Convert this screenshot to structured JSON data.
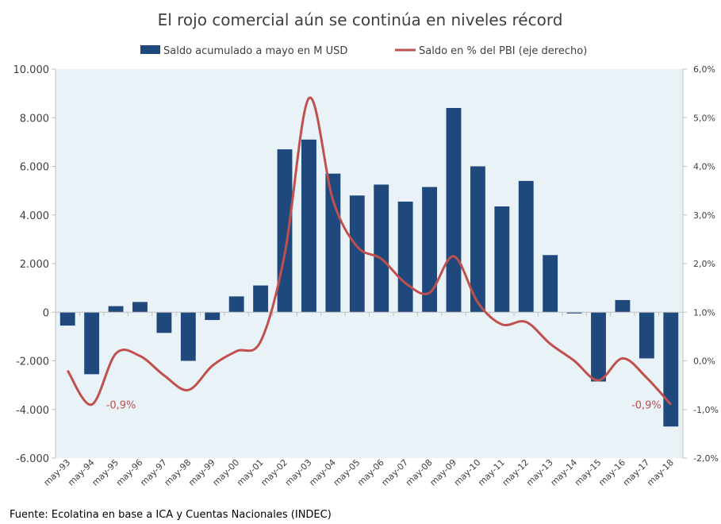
{
  "chart_data": {
    "type": "bar+line",
    "title": "El rojo comercial aún se continúa en niveles récord",
    "categories": [
      "may-93",
      "may-94",
      "may-95",
      "may-96",
      "may-97",
      "may-98",
      "may-99",
      "may-00",
      "may-01",
      "may-02",
      "may-03",
      "may-04",
      "may-05",
      "may-06",
      "may-07",
      "may-08",
      "may-09",
      "may-10",
      "may-11",
      "may-12",
      "may-13",
      "may-14",
      "may-15",
      "may-16",
      "may-17",
      "may-18"
    ],
    "series": [
      {
        "name": "Saldo acumulado a mayo en M USD",
        "kind": "bar",
        "axis": "left",
        "color": "#1f497d",
        "values": [
          -550,
          -2550,
          250,
          420,
          -850,
          -2000,
          -320,
          650,
          1100,
          6700,
          7100,
          5700,
          4800,
          5250,
          4550,
          5150,
          8400,
          6000,
          4350,
          5400,
          2350,
          -50,
          -2850,
          500,
          -1900,
          -4700
        ]
      },
      {
        "name": "Saldo en % del PBI (eje derecho)",
        "kind": "line",
        "axis": "right",
        "color": "#c0504d",
        "values": [
          -0.2,
          -0.9,
          0.15,
          0.1,
          -0.3,
          -0.6,
          -0.1,
          0.2,
          0.4,
          2.2,
          5.4,
          3.3,
          2.35,
          2.1,
          1.6,
          1.4,
          2.15,
          1.2,
          0.75,
          0.8,
          0.35,
          0.0,
          -0.4,
          0.05,
          -0.35,
          -0.9
        ]
      }
    ],
    "y_left": {
      "ylim": [
        -6000,
        10000
      ],
      "ticks": [
        "-6.000",
        "-4.000",
        "-2.000",
        "0",
        "2.000",
        "4.000",
        "6.000",
        "8.000",
        "10.000"
      ],
      "tick_values": [
        -6000,
        -4000,
        -2000,
        0,
        2000,
        4000,
        6000,
        8000,
        10000
      ]
    },
    "y_right": {
      "ylim": [
        -2.0,
        6.0
      ],
      "ticks": [
        "-2,0%",
        "-1,0%",
        "0,0%",
        "1,0%",
        "2,0%",
        "3,0%",
        "4,0%",
        "5,0%",
        "6,0%"
      ],
      "tick_values": [
        -2,
        -1,
        0,
        1,
        2,
        3,
        4,
        5,
        6
      ]
    },
    "annotations": [
      {
        "text": "-0,9%",
        "category": "may-94"
      },
      {
        "text": "-0,9%",
        "category": "may-18"
      }
    ],
    "legend_placement": "top",
    "grid": false,
    "source": "Fuente: Ecolatina en base a ICA y Cuentas Nacionales (INDEC)"
  }
}
